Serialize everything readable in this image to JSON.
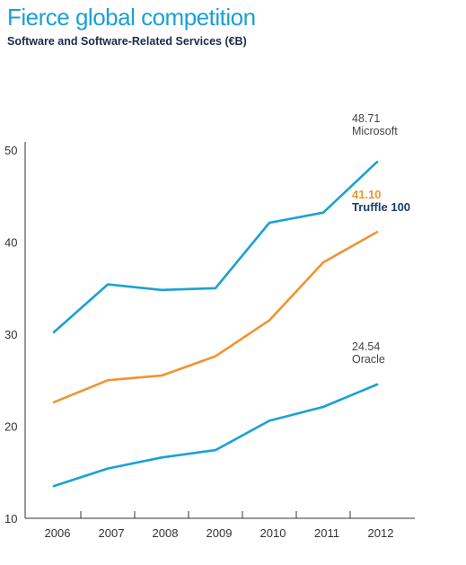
{
  "chart_data": {
    "type": "line",
    "title": "Fierce global competition",
    "subtitle": "Software and Software-Related Services (€B)",
    "x": [
      "2006",
      "2007",
      "2008",
      "2009",
      "2010",
      "2011",
      "2012"
    ],
    "ylim": [
      10,
      50
    ],
    "yticks": [
      "10",
      "20",
      "30",
      "40",
      "50"
    ],
    "grid": false,
    "series": [
      {
        "name": "Microsoft",
        "color": "#1aa1d4",
        "values": [
          30.2,
          35.4,
          34.8,
          35.0,
          42.1,
          43.2,
          48.71
        ],
        "end_value_label": "48.71",
        "end_name_label": "Microsoft"
      },
      {
        "name": "Truffle 100",
        "color": "#f0942f",
        "values": [
          22.6,
          25.0,
          25.5,
          27.6,
          31.5,
          37.8,
          41.1
        ],
        "end_value_label": "41.10",
        "end_name_label": "Truffle 100"
      },
      {
        "name": "Oracle",
        "color": "#1aa1d4",
        "values": [
          13.5,
          15.4,
          16.6,
          17.4,
          20.6,
          22.1,
          24.54
        ],
        "end_value_label": "24.54",
        "end_name_label": "Oracle"
      }
    ],
    "label_colors": {
      "truffle_name": "#1c3a6e",
      "plain": "#444444"
    }
  }
}
